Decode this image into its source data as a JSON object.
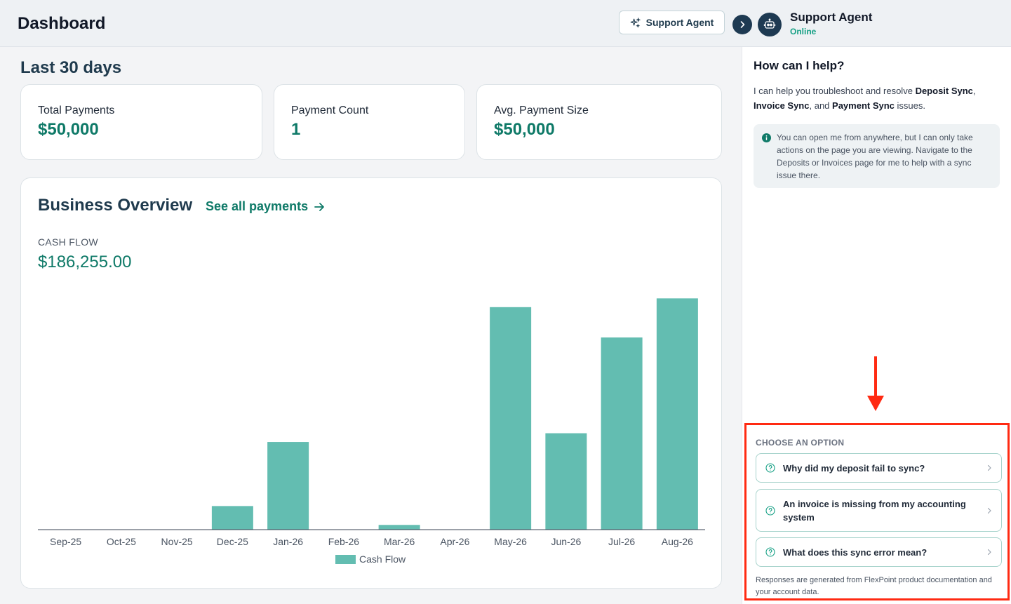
{
  "header": {
    "title": "Dashboard",
    "support_button_label": "Support Agent"
  },
  "period_title": "Last 30 days",
  "stats": [
    {
      "label": "Total Payments",
      "value": "$50,000"
    },
    {
      "label": "Payment Count",
      "value": "1"
    },
    {
      "label": "Avg. Payment Size",
      "value": "$50,000"
    }
  ],
  "overview": {
    "title": "Business Overview",
    "link_label": "See all payments",
    "cash_flow_label": "CASH FLOW",
    "cash_flow_value": "$186,255.00"
  },
  "chart_data": {
    "type": "bar",
    "categories": [
      "Sep-25",
      "Oct-25",
      "Nov-25",
      "Dec-25",
      "Jan-26",
      "Feb-26",
      "Mar-26",
      "Apr-26",
      "May-26",
      "Jun-26",
      "Jul-26",
      "Aug-26"
    ],
    "series": [
      {
        "name": "Cash Flow",
        "values": [
          0,
          0,
          0,
          3500,
          13000,
          0,
          700,
          0,
          33000,
          14300,
          28500,
          34300
        ],
        "color": "#63bdb1"
      }
    ],
    "ylim": [
      0,
      36000
    ],
    "grid": false,
    "legend": "bottom"
  },
  "panel": {
    "agent_name": "Support Agent",
    "agent_status": "Online",
    "help_title": "How can I help?",
    "help_intro": "I can help you troubleshoot and resolve",
    "help_item_1": "Deposit Sync",
    "help_sep": ",",
    "help_item_2": "Invoice Sync",
    "help_and": ", and",
    "help_item_3": "Payment Sync",
    "help_end": "issues.",
    "info_text": "You can open me from anywhere, but I can only take actions on the page you are viewing. Navigate to the Deposits or Invoices page for me to help with a sync issue there.",
    "options_heading": "CHOOSE AN OPTION",
    "options": [
      "Why did my deposit fail to sync?",
      "An invoice is missing from my accounting system",
      "What does this sync error mean?"
    ],
    "disclaimer": "Responses are generated from FlexPoint product documentation and your account data."
  },
  "colors": {
    "accent": "#0f7a68",
    "bar": "#63bdb1",
    "navy": "#1e3a52",
    "highlight": "#ff2a12"
  }
}
